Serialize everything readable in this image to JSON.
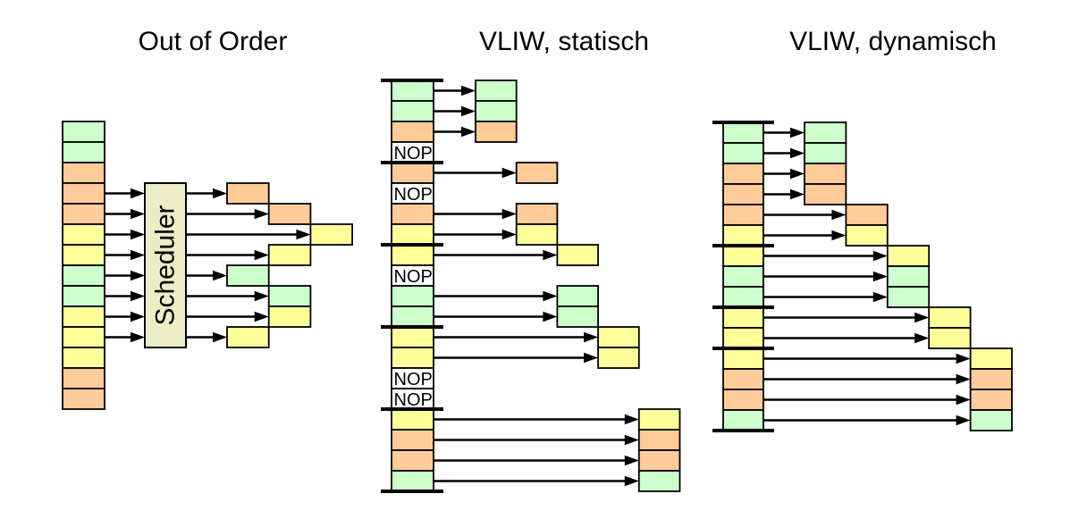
{
  "colors": {
    "green": "#CCFFCC",
    "orange": "#FFCC99",
    "yellow": "#FFFF99",
    "nop_fill": "#FFFFFF",
    "scheduler_fill": "#ECECC6",
    "stroke": "#000000",
    "background": "#FFFFFF"
  },
  "sections": {
    "out_of_order": {
      "title": "Out of Order",
      "scheduler_label": "Scheduler",
      "input_stack": [
        "green",
        "green",
        "orange",
        "orange",
        "orange",
        "yellow",
        "yellow",
        "green",
        "green",
        "yellow",
        "yellow",
        "yellow",
        "orange",
        "orange"
      ],
      "scheduler_input_rows": [
        3,
        4,
        5,
        6,
        7,
        8,
        9,
        10
      ],
      "issue_cycles": [
        0,
        1,
        2,
        1,
        0,
        1,
        1,
        0
      ]
    },
    "vliw_static": {
      "title": "VLIW, statisch",
      "nop_label": "NOP",
      "bundle_size": 4,
      "input_stack": [
        "green",
        "green",
        "orange",
        "NOP",
        "orange",
        "NOP",
        "orange",
        "yellow",
        "yellow",
        "NOP",
        "green",
        "green",
        "yellow",
        "yellow",
        "NOP",
        "NOP",
        "yellow",
        "orange",
        "orange",
        "green"
      ]
    },
    "vliw_dynamic": {
      "title": "VLIW, dynamisch",
      "input_stack": [
        "green",
        "green",
        "orange",
        "orange",
        "orange",
        "yellow",
        "yellow",
        "green",
        "green",
        "yellow",
        "yellow",
        "yellow",
        "orange",
        "orange",
        "green"
      ],
      "bundle_breaks": [
        0,
        6,
        9,
        11,
        15
      ],
      "issue_cycles": [
        0,
        0,
        0,
        0,
        1,
        1,
        2,
        2,
        2,
        3,
        3,
        4,
        4,
        4,
        4
      ]
    }
  }
}
